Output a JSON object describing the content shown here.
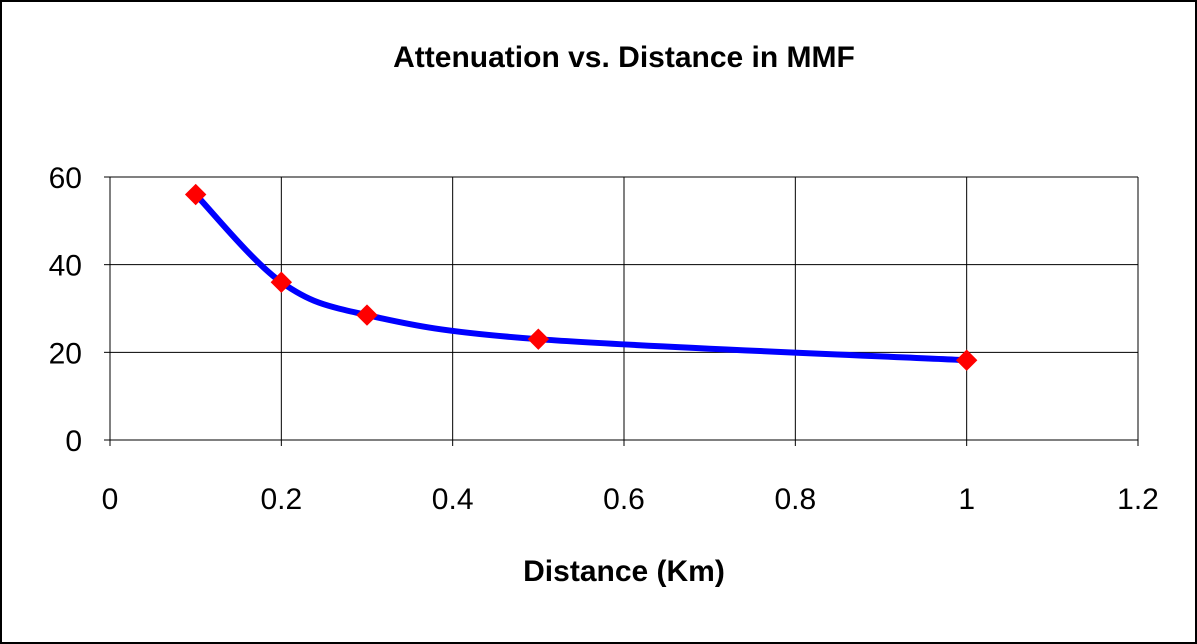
{
  "chart_data": {
    "type": "line",
    "title": "Attenuation vs. Distance in MMF",
    "xlabel": "Distance (Km)",
    "ylabel": "",
    "xlim": [
      0,
      1.2
    ],
    "ylim": [
      0,
      60
    ],
    "x_ticks": [
      "0",
      "0.2",
      "0.4",
      "0.6",
      "0.8",
      "1",
      "1.2"
    ],
    "y_ticks": [
      "0",
      "20",
      "40",
      "60"
    ],
    "grid": true,
    "legend": "none",
    "series": [
      {
        "x": [
          0.1,
          0.2,
          0.3,
          0.5,
          1.0
        ],
        "y": [
          56,
          36,
          28.5,
          23,
          18.2
        ],
        "line_color": "#0000ff",
        "marker": "diamond",
        "marker_color": "#ff0000",
        "smoothed": true
      }
    ]
  }
}
